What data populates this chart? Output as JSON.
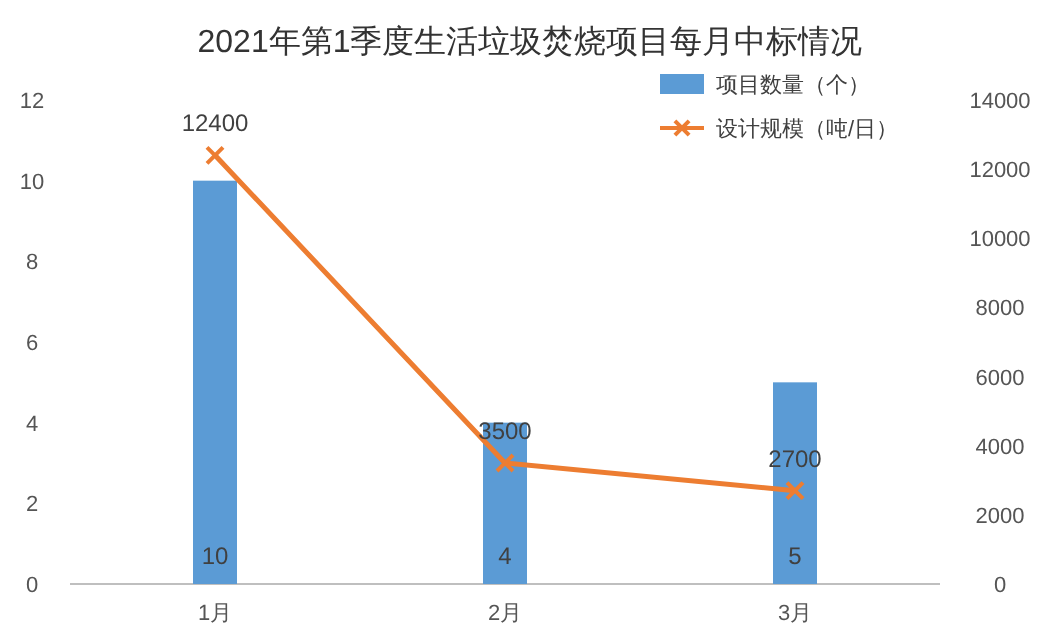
{
  "chart_data": {
    "type": "bar",
    "title": "2021年第1季度生活垃圾焚烧项目每月中标情况",
    "categories": [
      "1月",
      "2月",
      "3月"
    ],
    "series": [
      {
        "name": "项目数量（个）",
        "type": "bar",
        "color": "#5b9bd5",
        "values": [
          10,
          4,
          5
        ]
      },
      {
        "name": "设计规模（吨/日）",
        "type": "line",
        "axis": "y2",
        "color": "#ed7d31",
        "marker": "cross",
        "values": [
          12400,
          3500,
          2700
        ]
      }
    ],
    "ylim": [
      0,
      12
    ],
    "yticks": [
      0,
      2,
      4,
      6,
      8,
      10,
      12
    ],
    "y2lim": [
      0,
      14000
    ],
    "y2ticks": [
      0,
      2000,
      4000,
      6000,
      8000,
      10000,
      12000,
      14000
    ],
    "legend": "top right",
    "data_labels": true
  }
}
